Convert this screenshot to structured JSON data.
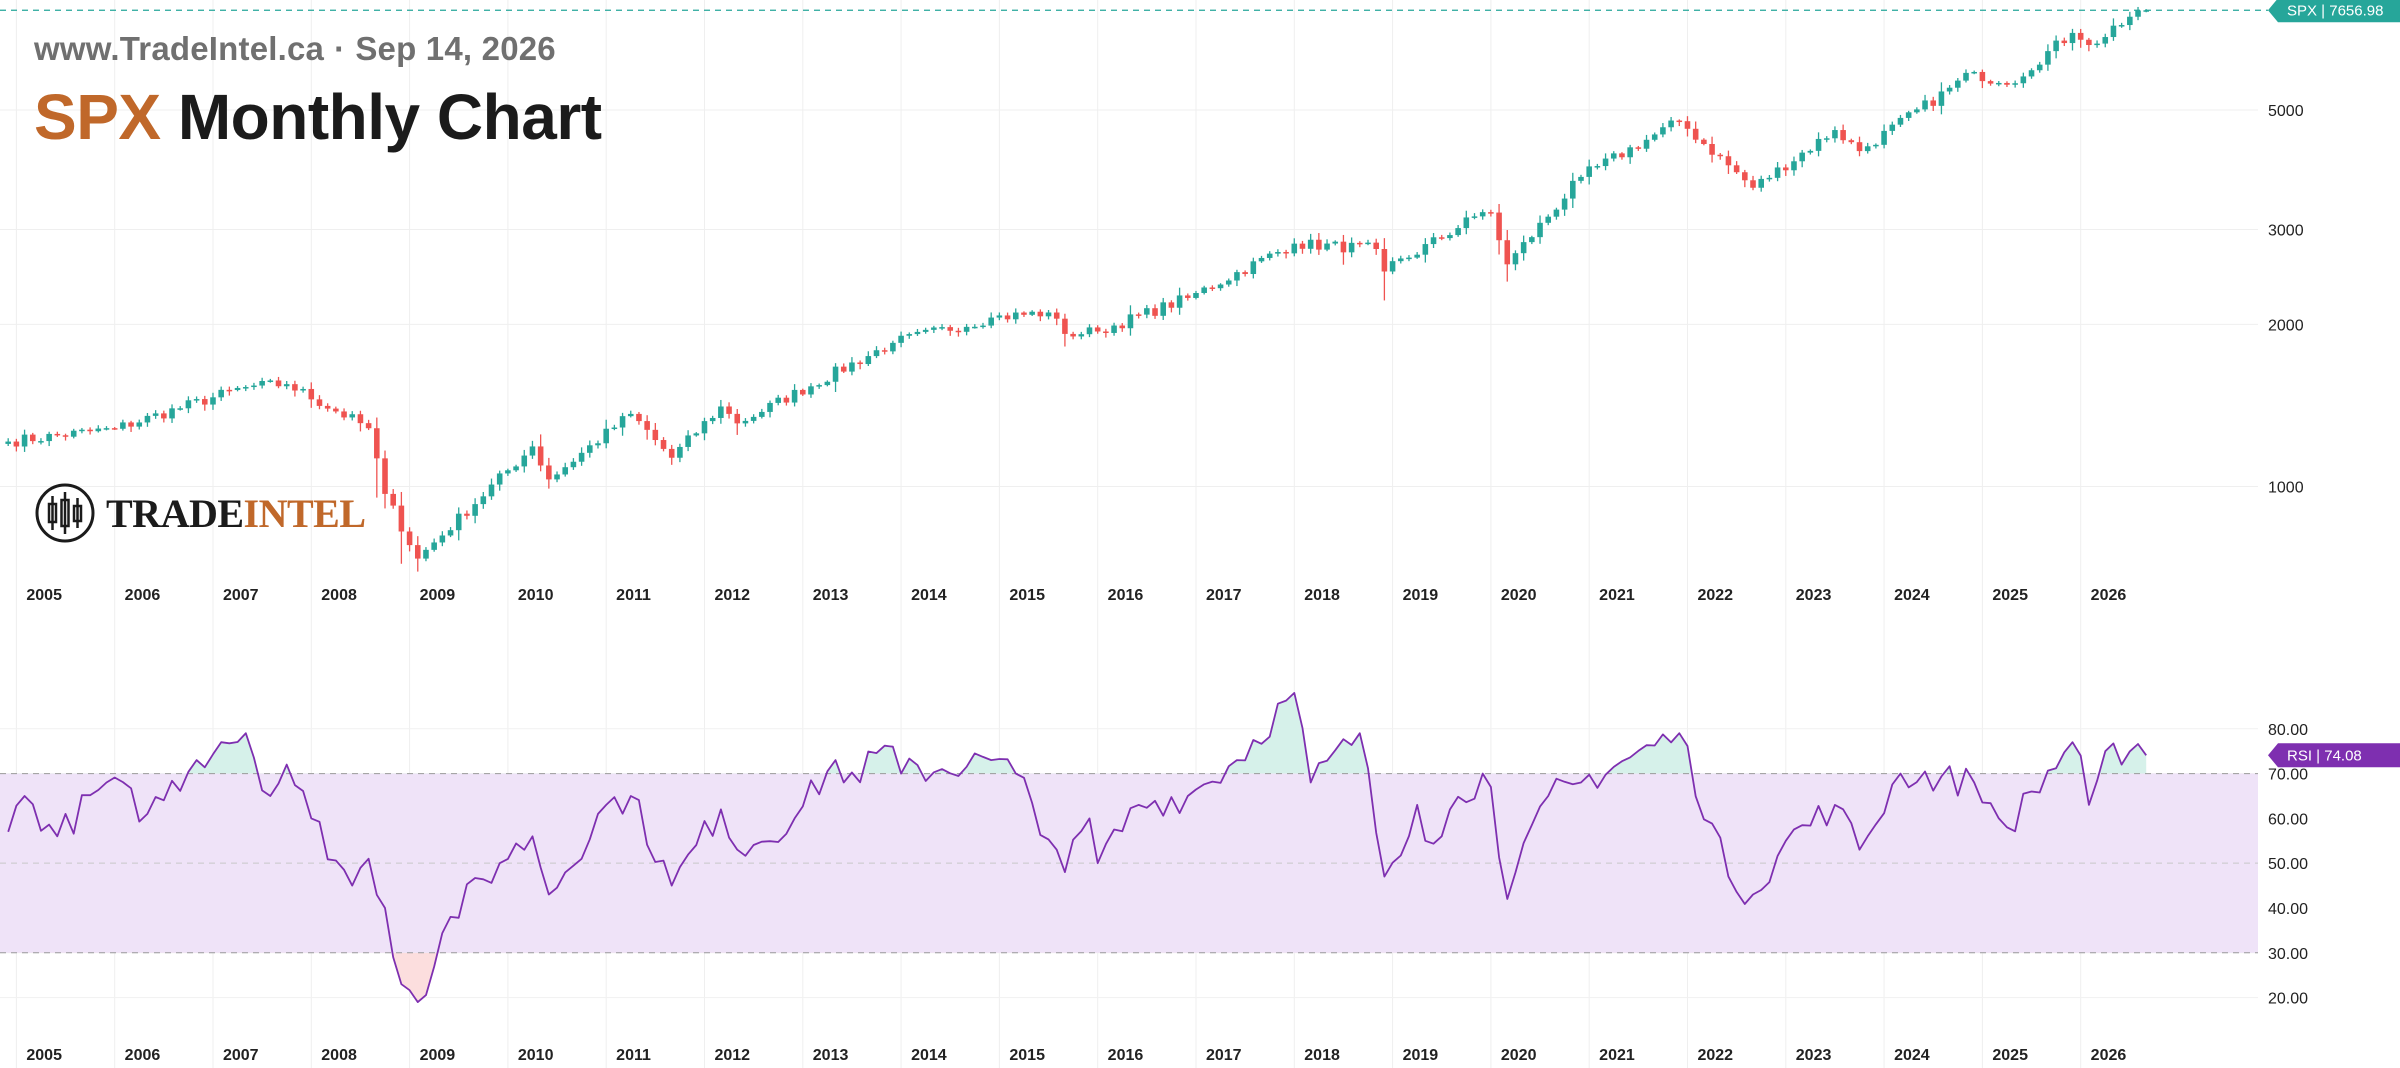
{
  "header": {
    "site": "www.TradeIntel.ca",
    "separator": "·",
    "date": "Sep 14, 2026",
    "symbol": "SPX",
    "title_rest": "Monthly Chart"
  },
  "logo": {
    "text_a": "TRADE",
    "text_b": "INTEL"
  },
  "colors": {
    "up": "#26a69a",
    "down": "#ef5350",
    "rsi_line": "#7e2fb0",
    "rsi_band": "#efe3f8",
    "overbought_fill": "#d6f1ea",
    "oversold_fill": "#fcdede",
    "accent": "#c0682a"
  },
  "chart_data": [
    {
      "type": "candlestick",
      "name": "SPX",
      "scale": "log",
      "interval": "monthly",
      "ylim": [
        700,
        8000
      ],
      "yticks": [
        1000,
        2000,
        3000,
        5000
      ],
      "xticks": [
        "2005",
        "2006",
        "2007",
        "2008",
        "2009",
        "2010",
        "2011",
        "2012",
        "2013",
        "2014",
        "2015",
        "2016",
        "2017",
        "2018",
        "2019",
        "2020",
        "2021",
        "2022",
        "2023",
        "2024",
        "2025",
        "2026"
      ],
      "last_label": "SPX | 7656.98",
      "last_value": 7656.98,
      "anchors_close": [
        [
          "2004-12",
          1212
        ],
        [
          "2006-01",
          1280
        ],
        [
          "2007-05",
          1530
        ],
        [
          "2007-10",
          1549
        ],
        [
          "2008-08",
          1283
        ],
        [
          "2008-10",
          969
        ],
        [
          "2009-02",
          735
        ],
        [
          "2010-04",
          1187
        ],
        [
          "2010-06",
          1031
        ],
        [
          "2011-04",
          1364
        ],
        [
          "2011-09",
          1131
        ],
        [
          "2012-03",
          1408
        ],
        [
          "2012-05",
          1310
        ],
        [
          "2013-12",
          1848
        ],
        [
          "2014-12",
          2059
        ],
        [
          "2015-07",
          2104
        ],
        [
          "2015-09",
          1920
        ],
        [
          "2016-01",
          1940
        ],
        [
          "2016-12",
          2239
        ],
        [
          "2018-01",
          2824
        ],
        [
          "2018-11",
          2760
        ],
        [
          "2018-12",
          2507
        ],
        [
          "2019-12",
          3231
        ],
        [
          "2020-01",
          3225
        ],
        [
          "2020-03",
          2585
        ],
        [
          "2020-12",
          3756
        ],
        [
          "2021-12",
          4766
        ],
        [
          "2022-09",
          3586
        ],
        [
          "2023-07",
          4589
        ],
        [
          "2023-10",
          4194
        ],
        [
          "2024-12",
          5882
        ],
        [
          "2025-03",
          5612
        ],
        [
          "2025-04",
          5569
        ],
        [
          "2025-12",
          6950
        ],
        [
          "2026-01",
          6750
        ],
        [
          "2026-02",
          6600
        ],
        [
          "2026-08",
          7650
        ],
        [
          "2026-09",
          7656.98
        ]
      ]
    },
    {
      "type": "line",
      "name": "RSI",
      "ylim": [
        15,
        92
      ],
      "yticks": [
        20,
        30,
        40,
        50,
        60,
        70,
        80
      ],
      "overbought": 70,
      "oversold": 30,
      "last_label": "RSI | 74.08",
      "last_value": 74.08,
      "anchors": [
        [
          "2004-12",
          57
        ],
        [
          "2005-02",
          65
        ],
        [
          "2005-06",
          56
        ],
        [
          "2005-12",
          68
        ],
        [
          "2006-05",
          61
        ],
        [
          "2006-11",
          73
        ],
        [
          "2007-02",
          77
        ],
        [
          "2007-05",
          79
        ],
        [
          "2007-08",
          65
        ],
        [
          "2007-10",
          72
        ],
        [
          "2008-01",
          60
        ],
        [
          "2008-06",
          45
        ],
        [
          "2008-08",
          51
        ],
        [
          "2008-10",
          40
        ],
        [
          "2008-11",
          29
        ],
        [
          "2009-02",
          19
        ],
        [
          "2009-06",
          38
        ],
        [
          "2009-12",
          50
        ],
        [
          "2010-04",
          56
        ],
        [
          "2010-06",
          43
        ],
        [
          "2011-01",
          63
        ],
        [
          "2011-04",
          65
        ],
        [
          "2011-09",
          45
        ],
        [
          "2012-03",
          62
        ],
        [
          "2012-05",
          53
        ],
        [
          "2012-12",
          60
        ],
        [
          "2013-05",
          73
        ],
        [
          "2013-06",
          68
        ],
        [
          "2013-12",
          76
        ],
        [
          "2014-01",
          70
        ],
        [
          "2014-12",
          73
        ],
        [
          "2015-03",
          70
        ],
        [
          "2015-08",
          53
        ],
        [
          "2015-09",
          48
        ],
        [
          "2015-12",
          60
        ],
        [
          "2016-01",
          50
        ],
        [
          "2016-06",
          63
        ],
        [
          "2016-12",
          65
        ],
        [
          "2017-06",
          73
        ],
        [
          "2018-01",
          88
        ],
        [
          "2018-03",
          68
        ],
        [
          "2018-09",
          79
        ],
        [
          "2018-12",
          47
        ],
        [
          "2019-04",
          63
        ],
        [
          "2019-05",
          55
        ],
        [
          "2019-12",
          70
        ],
        [
          "2020-01",
          67
        ],
        [
          "2020-03",
          42
        ],
        [
          "2020-08",
          65
        ],
        [
          "2020-12",
          68
        ],
        [
          "2021-12",
          79
        ],
        [
          "2022-06",
          47
        ],
        [
          "2022-09",
          43
        ],
        [
          "2023-01",
          55
        ],
        [
          "2023-07",
          63
        ],
        [
          "2023-10",
          53
        ],
        [
          "2024-03",
          70
        ],
        [
          "2024-12",
          68
        ],
        [
          "2025-03",
          60
        ],
        [
          "2025-04",
          58
        ],
        [
          "2025-12",
          77
        ],
        [
          "2026-01",
          74
        ],
        [
          "2026-02",
          63
        ],
        [
          "2026-04",
          75
        ],
        [
          "2026-06",
          72
        ],
        [
          "2026-09",
          74.08
        ]
      ]
    }
  ]
}
